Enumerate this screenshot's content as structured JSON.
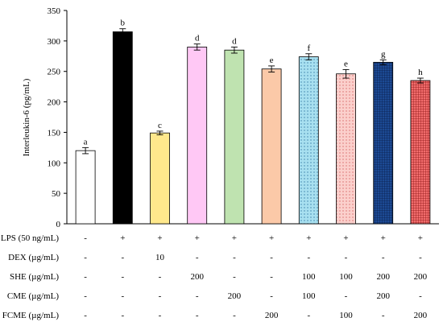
{
  "chart_data": {
    "type": "bar",
    "ylabel": "Interleukin-6 (pg/mL)",
    "ylim": [
      0,
      350
    ],
    "yticks": [
      0,
      50,
      100,
      150,
      200,
      250,
      300,
      350
    ],
    "grid": false,
    "legend": "none",
    "series": [
      {
        "values": [
          120,
          315,
          149,
          290,
          285,
          254,
          274,
          246,
          265,
          235
        ],
        "errors": [
          5,
          5,
          3,
          5,
          5,
          5,
          5,
          7,
          4,
          4
        ],
        "significance": [
          "a",
          "b",
          "c",
          "d",
          "d",
          "e",
          "f",
          "e",
          "g",
          "h"
        ]
      }
    ],
    "bar_styles": [
      {
        "fill": "#ffffff",
        "pattern": "none"
      },
      {
        "fill": "#000000",
        "pattern": "none"
      },
      {
        "fill": "#ffe88c",
        "pattern": "none"
      },
      {
        "fill": "#ffc8f5",
        "pattern": "none"
      },
      {
        "fill": "#bfe3b0",
        "pattern": "none"
      },
      {
        "fill": "#fbc9a8",
        "pattern": "none"
      },
      {
        "fill": "#a8e0f0",
        "pattern": "dots",
        "pattern_color": "#3a7ea8"
      },
      {
        "fill": "#fbd0cc",
        "pattern": "dots",
        "pattern_color": "#d86a6a"
      },
      {
        "fill": "#1c4a94",
        "pattern": "grid",
        "pattern_color": "#0a1e4a"
      },
      {
        "fill": "#f26d6d",
        "pattern": "grid",
        "pattern_color": "#8a1212"
      }
    ],
    "treatment_table": [
      {
        "label": "LPS (50 ng/mL)",
        "values": [
          "-",
          "+",
          "+",
          "+",
          "+",
          "+",
          "+",
          "+",
          "+",
          "+"
        ]
      },
      {
        "label": "DEX (µg/mL)",
        "values": [
          "-",
          "-",
          "10",
          "-",
          "-",
          "-",
          "-",
          "-",
          "-",
          "-"
        ]
      },
      {
        "label": "SHE (µg/mL)",
        "values": [
          "-",
          "-",
          "-",
          "200",
          "-",
          "-",
          "100",
          "100",
          "200",
          "200"
        ]
      },
      {
        "label": "CME (µg/mL)",
        "values": [
          "-",
          "-",
          "-",
          "-",
          "200",
          "-",
          "100",
          "-",
          "200",
          "-"
        ]
      },
      {
        "label": "FCME (µg/mL)",
        "values": [
          "-",
          "-",
          "-",
          "-",
          "-",
          "200",
          "-",
          "100",
          "-",
          "200"
        ]
      }
    ]
  }
}
